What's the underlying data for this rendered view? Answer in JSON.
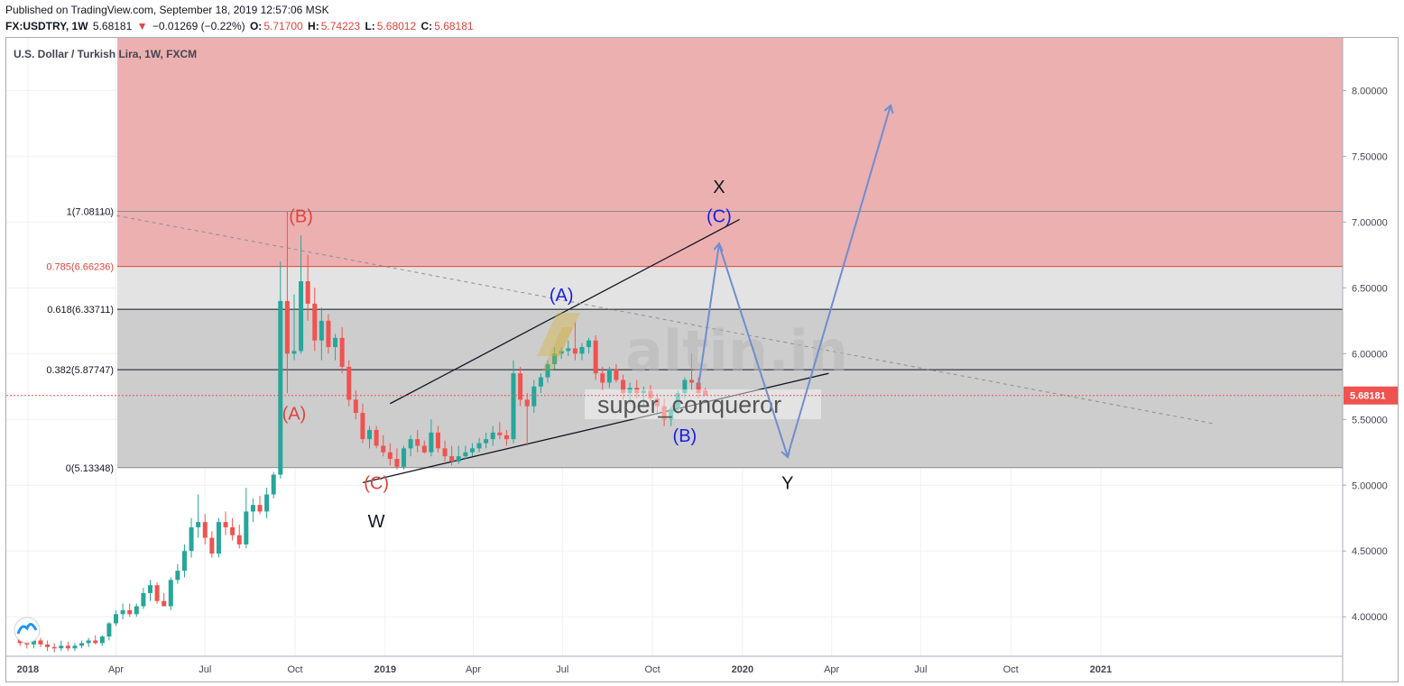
{
  "header": {
    "published": "Published on TradingView.com, September 18, 2019 12:57:06 MSK",
    "symbol": "FX:USDTRY, 1W",
    "last": "5.68181",
    "change": "−0.01269 (−0.22%)",
    "o_label": "O:",
    "o_val": "5.71700",
    "h_label": "H:",
    "h_val": "5.74223",
    "l_label": "L:",
    "l_val": "5.68012",
    "c_label": "C:",
    "c_val": "5.68181"
  },
  "chart_title": "U.S. Dollar / Turkish Lira, 1W, FXCM",
  "watermark": {
    "brand": "altin.in",
    "user": "super_conqueror"
  },
  "colors": {
    "up": "#26a69a",
    "down": "#ef5350",
    "zone_red": "#ecb0b1",
    "zone_light": "#e3e3e3",
    "zone_dark": "#cdcdcd",
    "arrow": "#6f8ed0",
    "label_red": "#e0443d",
    "label_blue": "#1b1ee8"
  },
  "chart_data": {
    "type": "candlestick",
    "title": "U.S. Dollar / Turkish Lira, 1W, FXCM",
    "ylim": [
      3.7,
      8.4
    ],
    "y_ticks": [
      "8.00000",
      "7.50000",
      "7.00000",
      "6.50000",
      "6.00000",
      "5.50000",
      "5.00000",
      "4.50000",
      "4.00000"
    ],
    "x_ticks": [
      "2018",
      "Apr",
      "Jul",
      "Oct",
      "2019",
      "Apr",
      "Jul",
      "Oct",
      "2020",
      "Apr",
      "Jul",
      "Oct",
      "2021"
    ],
    "last_price": "5.68181",
    "fib_levels": [
      {
        "label": "1(7.08110)",
        "value": 7.0811
      },
      {
        "label": "0.785(6.66236)",
        "value": 6.66236
      },
      {
        "label": "0.618(6.33711)",
        "value": 6.33711
      },
      {
        "label": "0.382(5.87747)",
        "value": 5.87747
      },
      {
        "label": "0(5.13348)",
        "value": 5.13348
      }
    ],
    "candles": [
      {
        "date": "2017-12-24",
        "o": 3.9,
        "h": 3.98,
        "l": 3.78,
        "c": 3.8
      },
      {
        "date": "2017-12-31",
        "o": 3.8,
        "h": 3.84,
        "l": 3.76,
        "c": 3.79
      },
      {
        "date": "2018-01-07",
        "o": 3.79,
        "h": 3.84,
        "l": 3.76,
        "c": 3.82
      },
      {
        "date": "2018-01-14",
        "o": 3.82,
        "h": 3.84,
        "l": 3.77,
        "c": 3.79
      },
      {
        "date": "2018-01-21",
        "o": 3.79,
        "h": 3.82,
        "l": 3.74,
        "c": 3.77
      },
      {
        "date": "2018-01-28",
        "o": 3.77,
        "h": 3.8,
        "l": 3.73,
        "c": 3.76
      },
      {
        "date": "2018-02-04",
        "o": 3.76,
        "h": 3.82,
        "l": 3.74,
        "c": 3.78
      },
      {
        "date": "2018-02-11",
        "o": 3.78,
        "h": 3.81,
        "l": 3.74,
        "c": 3.76
      },
      {
        "date": "2018-02-18",
        "o": 3.76,
        "h": 3.8,
        "l": 3.74,
        "c": 3.78
      },
      {
        "date": "2018-02-25",
        "o": 3.78,
        "h": 3.82,
        "l": 3.76,
        "c": 3.8
      },
      {
        "date": "2018-03-04",
        "o": 3.8,
        "h": 3.84,
        "l": 3.77,
        "c": 3.82
      },
      {
        "date": "2018-03-11",
        "o": 3.82,
        "h": 3.86,
        "l": 3.79,
        "c": 3.8
      },
      {
        "date": "2018-03-18",
        "o": 3.8,
        "h": 3.86,
        "l": 3.78,
        "c": 3.85
      },
      {
        "date": "2018-03-25",
        "o": 3.85,
        "h": 3.96,
        "l": 3.82,
        "c": 3.95
      },
      {
        "date": "2018-04-01",
        "o": 3.95,
        "h": 4.05,
        "l": 3.93,
        "c": 4.02
      },
      {
        "date": "2018-04-08",
        "o": 4.02,
        "h": 4.1,
        "l": 3.98,
        "c": 4.05
      },
      {
        "date": "2018-04-15",
        "o": 4.05,
        "h": 4.1,
        "l": 4.0,
        "c": 4.02
      },
      {
        "date": "2018-04-22",
        "o": 4.02,
        "h": 4.1,
        "l": 4.0,
        "c": 4.08
      },
      {
        "date": "2018-04-29",
        "o": 4.08,
        "h": 4.22,
        "l": 4.06,
        "c": 4.18
      },
      {
        "date": "2018-05-06",
        "o": 4.18,
        "h": 4.28,
        "l": 4.12,
        "c": 4.24
      },
      {
        "date": "2018-05-13",
        "o": 4.24,
        "h": 4.26,
        "l": 4.1,
        "c": 4.12
      },
      {
        "date": "2018-05-20",
        "o": 4.12,
        "h": 4.18,
        "l": 4.08,
        "c": 4.08
      },
      {
        "date": "2018-05-27",
        "o": 4.08,
        "h": 4.3,
        "l": 4.05,
        "c": 4.28
      },
      {
        "date": "2018-06-03",
        "o": 4.28,
        "h": 4.4,
        "l": 4.25,
        "c": 4.35
      },
      {
        "date": "2018-06-10",
        "o": 4.35,
        "h": 4.55,
        "l": 4.3,
        "c": 4.5
      },
      {
        "date": "2018-06-17",
        "o": 4.5,
        "h": 4.75,
        "l": 4.45,
        "c": 4.68
      },
      {
        "date": "2018-06-24",
        "o": 4.68,
        "h": 4.93,
        "l": 4.6,
        "c": 4.72
      },
      {
        "date": "2018-07-01",
        "o": 4.72,
        "h": 4.78,
        "l": 4.55,
        "c": 4.6
      },
      {
        "date": "2018-07-08",
        "o": 4.6,
        "h": 4.65,
        "l": 4.45,
        "c": 4.48
      },
      {
        "date": "2018-07-15",
        "o": 4.48,
        "h": 4.75,
        "l": 4.45,
        "c": 4.72
      },
      {
        "date": "2018-07-22",
        "o": 4.72,
        "h": 4.8,
        "l": 4.62,
        "c": 4.68
      },
      {
        "date": "2018-07-29",
        "o": 4.68,
        "h": 4.75,
        "l": 4.58,
        "c": 4.62
      },
      {
        "date": "2018-08-05",
        "o": 4.62,
        "h": 4.7,
        "l": 4.52,
        "c": 4.55
      },
      {
        "date": "2018-08-12",
        "o": 4.55,
        "h": 4.98,
        "l": 4.52,
        "c": 4.8
      },
      {
        "date": "2018-08-19",
        "o": 4.8,
        "h": 4.9,
        "l": 4.72,
        "c": 4.85
      },
      {
        "date": "2018-08-26",
        "o": 4.85,
        "h": 4.92,
        "l": 4.78,
        "c": 4.8
      },
      {
        "date": "2018-09-02",
        "o": 4.8,
        "h": 4.98,
        "l": 4.75,
        "c": 4.93
      },
      {
        "date": "2018-09-09",
        "o": 4.93,
        "h": 5.1,
        "l": 4.9,
        "c": 5.08
      },
      {
        "date": "2018-09-16",
        "o": 5.08,
        "h": 6.7,
        "l": 5.05,
        "c": 6.4
      },
      {
        "date": "2018-09-23",
        "o": 6.4,
        "h": 7.08,
        "l": 5.7,
        "c": 6.0
      },
      {
        "date": "2018-09-30",
        "o": 6.0,
        "h": 6.45,
        "l": 5.95,
        "c": 6.02
      },
      {
        "date": "2018-10-07",
        "o": 6.02,
        "h": 6.9,
        "l": 6.0,
        "c": 6.55
      },
      {
        "date": "2018-10-14",
        "o": 6.55,
        "h": 6.75,
        "l": 6.25,
        "c": 6.38
      },
      {
        "date": "2018-10-21",
        "o": 6.38,
        "h": 6.5,
        "l": 6.02,
        "c": 6.1
      },
      {
        "date": "2018-10-28",
        "o": 6.1,
        "h": 6.35,
        "l": 5.95,
        "c": 6.25
      },
      {
        "date": "2018-11-04",
        "o": 6.25,
        "h": 6.3,
        "l": 6.0,
        "c": 6.05
      },
      {
        "date": "2018-11-11",
        "o": 6.05,
        "h": 6.15,
        "l": 5.95,
        "c": 6.12
      },
      {
        "date": "2018-11-18",
        "o": 6.12,
        "h": 6.2,
        "l": 5.85,
        "c": 5.9
      },
      {
        "date": "2018-11-25",
        "o": 5.9,
        "h": 5.95,
        "l": 5.6,
        "c": 5.65
      },
      {
        "date": "2018-12-02",
        "o": 5.65,
        "h": 5.72,
        "l": 5.5,
        "c": 5.55
      },
      {
        "date": "2018-12-09",
        "o": 5.55,
        "h": 5.62,
        "l": 5.32,
        "c": 5.35
      },
      {
        "date": "2018-12-16",
        "o": 5.35,
        "h": 5.45,
        "l": 5.28,
        "c": 5.42
      },
      {
        "date": "2018-12-23",
        "o": 5.42,
        "h": 5.45,
        "l": 5.28,
        "c": 5.3
      },
      {
        "date": "2018-12-30",
        "o": 5.3,
        "h": 5.38,
        "l": 5.22,
        "c": 5.25
      },
      {
        "date": "2019-01-06",
        "o": 5.25,
        "h": 5.32,
        "l": 5.15,
        "c": 5.2
      },
      {
        "date": "2019-01-13",
        "o": 5.2,
        "h": 5.28,
        "l": 5.12,
        "c": 5.14
      },
      {
        "date": "2019-01-20",
        "o": 5.14,
        "h": 5.3,
        "l": 5.12,
        "c": 5.28
      },
      {
        "date": "2019-01-27",
        "o": 5.28,
        "h": 5.38,
        "l": 5.22,
        "c": 5.35
      },
      {
        "date": "2019-02-03",
        "o": 5.35,
        "h": 5.42,
        "l": 5.25,
        "c": 5.3
      },
      {
        "date": "2019-02-10",
        "o": 5.3,
        "h": 5.34,
        "l": 5.24,
        "c": 5.25
      },
      {
        "date": "2019-02-17",
        "o": 5.25,
        "h": 5.5,
        "l": 5.22,
        "c": 5.4
      },
      {
        "date": "2019-02-24",
        "o": 5.4,
        "h": 5.45,
        "l": 5.25,
        "c": 5.28
      },
      {
        "date": "2019-03-03",
        "o": 5.28,
        "h": 5.34,
        "l": 5.18,
        "c": 5.22
      },
      {
        "date": "2019-03-10",
        "o": 5.22,
        "h": 5.3,
        "l": 5.15,
        "c": 5.18
      },
      {
        "date": "2019-03-17",
        "o": 5.18,
        "h": 5.3,
        "l": 5.16,
        "c": 5.22
      },
      {
        "date": "2019-03-24",
        "o": 5.22,
        "h": 5.3,
        "l": 5.2,
        "c": 5.25
      },
      {
        "date": "2019-03-31",
        "o": 5.25,
        "h": 5.32,
        "l": 5.22,
        "c": 5.28
      },
      {
        "date": "2019-04-07",
        "o": 5.28,
        "h": 5.36,
        "l": 5.25,
        "c": 5.32
      },
      {
        "date": "2019-04-14",
        "o": 5.32,
        "h": 5.4,
        "l": 5.28,
        "c": 5.35
      },
      {
        "date": "2019-04-21",
        "o": 5.35,
        "h": 5.45,
        "l": 5.3,
        "c": 5.4
      },
      {
        "date": "2019-04-28",
        "o": 5.4,
        "h": 5.48,
        "l": 5.35,
        "c": 5.38
      },
      {
        "date": "2019-05-05",
        "o": 5.38,
        "h": 5.42,
        "l": 5.3,
        "c": 5.35
      },
      {
        "date": "2019-05-12",
        "o": 5.35,
        "h": 5.95,
        "l": 5.32,
        "c": 5.85
      },
      {
        "date": "2019-05-19",
        "o": 5.85,
        "h": 5.9,
        "l": 5.6,
        "c": 5.65
      },
      {
        "date": "2019-05-26",
        "o": 5.65,
        "h": 5.7,
        "l": 5.3,
        "c": 5.6
      },
      {
        "date": "2019-06-02",
        "o": 5.6,
        "h": 5.8,
        "l": 5.55,
        "c": 5.75
      },
      {
        "date": "2019-06-09",
        "o": 5.75,
        "h": 5.85,
        "l": 5.7,
        "c": 5.82
      },
      {
        "date": "2019-06-16",
        "o": 5.82,
        "h": 5.95,
        "l": 5.78,
        "c": 5.92
      },
      {
        "date": "2019-06-23",
        "o": 5.92,
        "h": 6.05,
        "l": 5.88,
        "c": 6.0
      },
      {
        "date": "2019-06-30",
        "o": 6.0,
        "h": 6.05,
        "l": 5.96,
        "c": 6.02
      },
      {
        "date": "2019-07-07",
        "o": 6.02,
        "h": 6.1,
        "l": 5.98,
        "c": 6.04
      },
      {
        "date": "2019-07-14",
        "o": 6.04,
        "h": 6.24,
        "l": 5.95,
        "c": 6.0
      },
      {
        "date": "2019-07-21",
        "o": 6.0,
        "h": 6.08,
        "l": 5.95,
        "c": 6.05
      },
      {
        "date": "2019-07-28",
        "o": 6.05,
        "h": 6.12,
        "l": 6.0,
        "c": 6.1
      },
      {
        "date": "2019-08-04",
        "o": 6.1,
        "h": 6.14,
        "l": 5.8,
        "c": 5.85
      },
      {
        "date": "2019-08-11",
        "o": 5.85,
        "h": 5.9,
        "l": 5.72,
        "c": 5.78
      },
      {
        "date": "2019-08-18",
        "o": 5.78,
        "h": 5.9,
        "l": 5.74,
        "c": 5.88
      },
      {
        "date": "2019-08-25",
        "o": 5.88,
        "h": 5.92,
        "l": 5.78,
        "c": 5.8
      },
      {
        "date": "2019-09-01",
        "o": 5.8,
        "h": 5.84,
        "l": 5.65,
        "c": 5.7
      },
      {
        "date": "2019-09-08",
        "o": 5.7,
        "h": 5.78,
        "l": 5.62,
        "c": 5.74
      },
      {
        "date": "2019-09-15",
        "o": 5.74,
        "h": 5.8,
        "l": 5.66,
        "c": 5.7
      },
      {
        "date": "2019-09-22",
        "o": 5.7,
        "h": 5.75,
        "l": 5.6,
        "c": 5.72
      },
      {
        "date": "2019-09-29",
        "o": 5.72,
        "h": 5.76,
        "l": 5.64,
        "c": 5.66
      },
      {
        "date": "2019-10-06",
        "o": 5.66,
        "h": 5.7,
        "l": 5.55,
        "c": 5.6
      },
      {
        "date": "2019-10-13",
        "o": 5.6,
        "h": 5.66,
        "l": 5.45,
        "c": 5.5
      },
      {
        "date": "2019-10-20",
        "o": 5.5,
        "h": 5.6,
        "l": 5.45,
        "c": 5.58
      },
      {
        "date": "2019-10-27",
        "o": 5.58,
        "h": 5.72,
        "l": 5.54,
        "c": 5.7
      },
      {
        "date": "2019-11-03",
        "o": 5.7,
        "h": 5.82,
        "l": 5.66,
        "c": 5.8
      },
      {
        "date": "2019-11-10",
        "o": 5.8,
        "h": 6.0,
        "l": 5.72,
        "c": 5.78
      },
      {
        "date": "2019-11-17",
        "o": 5.78,
        "h": 5.82,
        "l": 5.66,
        "c": 5.7
      },
      {
        "date": "2019-11-24",
        "o": 5.72,
        "h": 5.74,
        "l": 5.68,
        "c": 5.68
      }
    ],
    "trendlines": [
      {
        "from": [
          "2018-12-09",
          5.02
        ],
        "to": [
          "2020-03-29",
          5.85
        ]
      },
      {
        "from": [
          "2019-01-06",
          5.62
        ],
        "to": [
          "2019-12-29",
          7.02
        ]
      },
      {
        "from": [
          "2018-03-11",
          7.08
        ],
        "to": [
          "2021-04-25",
          5.47
        ],
        "dashed": true
      }
    ],
    "projection": [
      [
        "2019-11-17",
        5.75
      ],
      [
        "2019-12-08",
        6.83
      ],
      [
        "2020-02-16",
        5.22
      ],
      [
        "2020-05-31",
        7.88
      ]
    ],
    "wave_labels": [
      {
        "text": "(B)",
        "date": "2018-10-07",
        "value": 7.0,
        "color": "red"
      },
      {
        "text": "(A)",
        "date": "2018-09-30",
        "value": 5.5,
        "color": "red"
      },
      {
        "text": "(C)",
        "date": "2018-12-23",
        "value": 4.97,
        "color": "red"
      },
      {
        "text": "W",
        "date": "2018-12-23",
        "value": 4.68,
        "color": "black"
      },
      {
        "text": "(A)",
        "date": "2019-06-30",
        "value": 6.4,
        "color": "blue"
      },
      {
        "text": "(B)",
        "date": "2019-11-03",
        "value": 5.33,
        "color": "blue"
      },
      {
        "text": "X",
        "date": "2019-12-08",
        "value": 7.22,
        "color": "black"
      },
      {
        "text": "(C)",
        "date": "2019-12-08",
        "value": 7.0,
        "color": "blue"
      },
      {
        "text": "Y",
        "date": "2020-02-16",
        "value": 4.97,
        "color": "black"
      }
    ]
  }
}
